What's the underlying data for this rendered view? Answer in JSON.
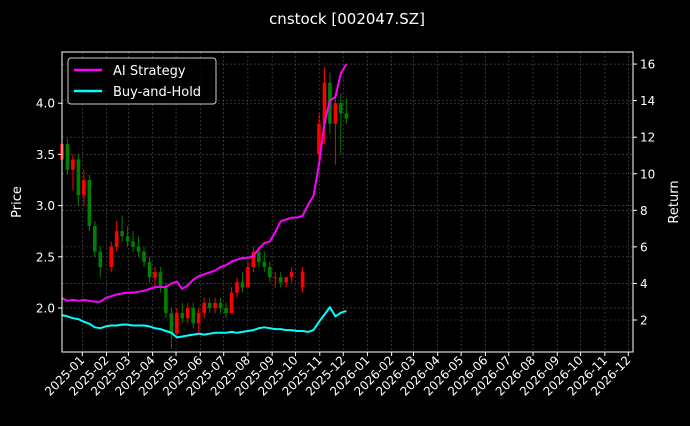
{
  "chart_data": {
    "type": "candlestick+line",
    "title": "cnstock [002047.SZ]",
    "ylabel_left": "Price",
    "ylabel_right": "Return",
    "xlim": [
      "2024-12-06",
      "2026-12-07"
    ],
    "ylim_left": [
      1.57,
      4.5
    ],
    "ylim_right": [
      0.25,
      16.66
    ],
    "yticks_left": [
      "2.0",
      "2.5",
      "3.0",
      "3.5",
      "4.0"
    ],
    "yticks_right": [
      "2",
      "4",
      "6",
      "8",
      "10",
      "12",
      "14",
      "16"
    ],
    "xticks": [
      "2025-01",
      "2025-02",
      "2025-03",
      "2025-04",
      "2025-05",
      "2025-06",
      "2025-07",
      "2025-08",
      "2025-09",
      "2025-10",
      "2025-11",
      "2025-12",
      "2026-01",
      "2026-02",
      "2026-03",
      "2026-04",
      "2026-05",
      "2026-06",
      "2026-07",
      "2026-08",
      "2026-09",
      "2026-10",
      "2026-11",
      "2026-12"
    ],
    "grid": true,
    "legend_placement": "top-left",
    "colors": {
      "background": "#000000",
      "up": "#ff0000",
      "down": "#008000",
      "strategy": "#ff00ff",
      "buy_hold": "#00ffff",
      "grid": "#555555"
    },
    "dates": [
      "2024-12-06",
      "2024-12-13",
      "2024-12-20",
      "2024-12-27",
      "2025-01-03",
      "2025-01-10",
      "2025-01-17",
      "2025-01-24",
      "2025-01-31",
      "2025-02-07",
      "2025-02-14",
      "2025-02-21",
      "2025-02-28",
      "2025-03-07",
      "2025-03-14",
      "2025-03-21",
      "2025-03-28",
      "2025-04-04",
      "2025-04-11",
      "2025-04-18",
      "2025-04-25",
      "2025-05-02",
      "2025-05-09",
      "2025-05-16",
      "2025-05-23",
      "2025-05-30",
      "2025-06-06",
      "2025-06-13",
      "2025-06-20",
      "2025-06-27",
      "2025-07-04",
      "2025-07-11",
      "2025-07-18",
      "2025-07-25",
      "2025-08-01",
      "2025-08-08",
      "2025-08-15",
      "2025-08-22",
      "2025-08-29",
      "2025-09-05",
      "2025-09-12",
      "2025-09-19",
      "2025-09-26",
      "2025-10-03",
      "2025-10-10",
      "2025-10-17",
      "2025-10-24",
      "2025-10-31",
      "2025-11-07",
      "2025-11-14",
      "2025-11-21",
      "2025-11-28",
      "2025-12-05"
    ],
    "ohlc": [
      [
        3.45,
        3.75,
        3.3,
        3.6
      ],
      [
        3.6,
        3.65,
        3.3,
        3.35
      ],
      [
        3.35,
        3.5,
        3.15,
        3.45
      ],
      [
        3.45,
        3.5,
        3.0,
        3.1
      ],
      [
        3.1,
        3.35,
        3.0,
        3.25
      ],
      [
        3.25,
        3.3,
        2.75,
        2.8
      ],
      [
        2.8,
        2.85,
        2.5,
        2.55
      ],
      [
        2.55,
        2.6,
        2.3,
        2.4
      ],
      null,
      [
        2.4,
        2.65,
        2.35,
        2.6
      ],
      [
        2.6,
        2.85,
        2.55,
        2.75
      ],
      [
        2.75,
        2.9,
        2.65,
        2.7
      ],
      [
        2.7,
        2.8,
        2.6,
        2.65
      ],
      [
        2.65,
        2.75,
        2.55,
        2.6
      ],
      [
        2.6,
        2.7,
        2.5,
        2.55
      ],
      [
        2.55,
        2.6,
        2.4,
        2.45
      ],
      [
        2.45,
        2.5,
        2.25,
        2.3
      ],
      [
        2.3,
        2.4,
        2.2,
        2.35
      ],
      [
        2.35,
        2.4,
        2.15,
        2.2
      ],
      [
        2.2,
        2.25,
        1.9,
        1.95
      ],
      [
        1.95,
        2.0,
        1.6,
        1.75
      ],
      [
        1.75,
        2.0,
        1.7,
        1.95
      ],
      [
        1.95,
        2.05,
        1.85,
        1.9
      ],
      [
        1.9,
        2.05,
        1.85,
        2.0
      ],
      [
        2.0,
        2.05,
        1.8,
        1.85
      ],
      [
        1.85,
        2.0,
        1.75,
        1.95
      ],
      [
        1.95,
        2.1,
        1.9,
        2.05
      ],
      [
        2.05,
        2.1,
        1.95,
        2.0
      ],
      [
        2.0,
        2.1,
        1.95,
        2.05
      ],
      [
        2.05,
        2.1,
        1.95,
        2.0
      ],
      [
        2.0,
        2.05,
        1.9,
        1.95
      ],
      [
        1.95,
        2.2,
        1.95,
        2.15
      ],
      [
        2.15,
        2.3,
        2.1,
        2.25
      ],
      [
        2.25,
        2.35,
        2.15,
        2.2
      ],
      [
        2.2,
        2.45,
        2.2,
        2.4
      ],
      [
        2.4,
        2.6,
        2.35,
        2.55
      ],
      [
        2.55,
        2.6,
        2.4,
        2.45
      ],
      [
        2.45,
        2.55,
        2.35,
        2.4
      ],
      [
        2.4,
        2.45,
        2.25,
        2.3
      ],
      [
        2.3,
        2.35,
        2.2,
        2.3
      ],
      [
        2.3,
        2.35,
        2.2,
        2.25
      ],
      [
        2.25,
        2.3,
        2.2,
        2.3
      ],
      [
        2.3,
        2.4,
        2.25,
        2.35
      ],
      null,
      [
        2.2,
        2.4,
        2.15,
        2.35
      ],
      null,
      null,
      [
        3.5,
        3.9,
        3.4,
        3.8
      ],
      [
        3.8,
        4.35,
        3.6,
        4.2
      ],
      [
        4.2,
        4.3,
        3.7,
        3.8
      ],
      [
        3.8,
        4.1,
        3.4,
        4.0
      ],
      [
        4.0,
        4.1,
        3.5,
        3.9
      ],
      [
        3.9,
        4.05,
        3.8,
        3.85
      ]
    ],
    "series": [
      {
        "name": "AI Strategy",
        "axis": "right",
        "values": [
          3.2,
          3.05,
          3.1,
          3.05,
          3.1,
          3.05,
          3.0,
          3.0,
          3.2,
          3.3,
          3.4,
          3.45,
          3.5,
          3.5,
          3.55,
          3.6,
          3.7,
          3.8,
          3.8,
          3.8,
          4.0,
          4.1,
          3.7,
          3.9,
          4.2,
          4.4,
          4.5,
          4.6,
          4.7,
          4.9,
          5.0,
          5.2,
          5.3,
          5.4,
          5.4,
          5.5,
          5.9,
          6.2,
          6.3,
          6.8,
          7.4,
          7.5,
          7.6,
          7.6,
          7.7,
          8.3,
          8.8,
          10.5,
          12.8,
          14.0,
          14.2,
          15.5,
          16.0
        ]
      },
      {
        "name": "Buy-and-Hold",
        "axis": "right",
        "values": [
          2.27,
          2.2,
          2.1,
          2.05,
          1.9,
          1.8,
          1.6,
          1.55,
          1.65,
          1.7,
          1.7,
          1.75,
          1.75,
          1.7,
          1.7,
          1.7,
          1.65,
          1.55,
          1.5,
          1.4,
          1.3,
          1.05,
          1.1,
          1.15,
          1.2,
          1.25,
          1.2,
          1.25,
          1.3,
          1.3,
          1.3,
          1.35,
          1.3,
          1.35,
          1.4,
          1.45,
          1.55,
          1.6,
          1.55,
          1.5,
          1.5,
          1.45,
          1.45,
          1.4,
          1.4,
          1.35,
          1.45,
          1.9,
          2.3,
          2.7,
          2.2,
          2.4,
          2.5
        ]
      }
    ]
  }
}
